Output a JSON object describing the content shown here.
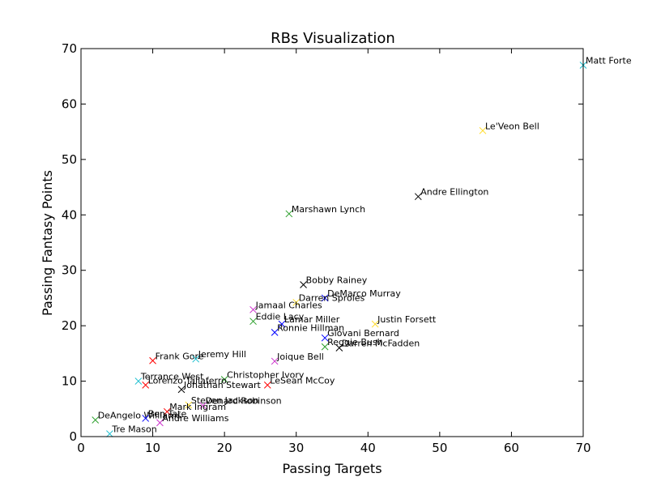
{
  "chart_data": {
    "type": "scatter",
    "title": "RBs Visualization",
    "xlabel": "Passing Targets",
    "ylabel": "Passing Fantasy Points",
    "xlim": [
      0,
      70
    ],
    "ylim": [
      0,
      70
    ],
    "xticks": [
      0,
      10,
      20,
      30,
      40,
      50,
      60,
      70
    ],
    "yticks": [
      0,
      10,
      20,
      30,
      40,
      50,
      60,
      70
    ],
    "grid": false,
    "marker": "x",
    "points": [
      {
        "name": "Matt Forte",
        "x": 70,
        "y": 67,
        "color": "#17becf"
      },
      {
        "name": "Le'Veon Bell",
        "x": 56,
        "y": 55.2,
        "color": "#ffdd33"
      },
      {
        "name": "Andre Ellington",
        "x": 47,
        "y": 43.3,
        "color": "#000000"
      },
      {
        "name": "Marshawn Lynch",
        "x": 29,
        "y": 40.2,
        "color": "#2ca02c"
      },
      {
        "name": "Bobby Rainey",
        "x": 31,
        "y": 27.4,
        "color": "#000000"
      },
      {
        "name": "DeMarco Murray",
        "x": 34,
        "y": 25,
        "color": "#0000ff"
      },
      {
        "name": "Darren Sproles",
        "x": 30,
        "y": 24.2,
        "color": "#ffdd33"
      },
      {
        "name": "Jamaal Charles",
        "x": 24,
        "y": 22.9,
        "color": "#cc33cc"
      },
      {
        "name": "Eddie Lacy",
        "x": 24,
        "y": 20.8,
        "color": "#2ca02c"
      },
      {
        "name": "Lamar Miller",
        "x": 28,
        "y": 20.3,
        "color": "#0000ff"
      },
      {
        "name": "Justin Forsett",
        "x": 41,
        "y": 20.3,
        "color": "#ffdd33"
      },
      {
        "name": "Ronnie Hillman",
        "x": 27,
        "y": 18.8,
        "color": "#0000ff"
      },
      {
        "name": "Giovani Bernard",
        "x": 34,
        "y": 17.8,
        "color": "#0000ff"
      },
      {
        "name": "Reggie Bush",
        "x": 34,
        "y": 16.2,
        "color": "#2ca02c"
      },
      {
        "name": "Darren McFadden",
        "x": 36,
        "y": 16,
        "color": "#000000"
      },
      {
        "name": "Frank Gore",
        "x": 10,
        "y": 13.7,
        "color": "#ff0000"
      },
      {
        "name": "Jeremy Hill",
        "x": 16,
        "y": 14,
        "color": "#17becf"
      },
      {
        "name": "Joique Bell",
        "x": 27,
        "y": 13.6,
        "color": "#cc33cc"
      },
      {
        "name": "Terrance West",
        "x": 8,
        "y": 10,
        "color": "#17becf"
      },
      {
        "name": "Christopher Ivory",
        "x": 20,
        "y": 10.3,
        "color": "#2ca02c"
      },
      {
        "name": "Lorenzo Taliaferro",
        "x": 9,
        "y": 9.3,
        "color": "#ff0000"
      },
      {
        "name": "LeSean McCoy",
        "x": 26,
        "y": 9.3,
        "color": "#ff0000"
      },
      {
        "name": "Jonathan Stewart",
        "x": 14,
        "y": 8.5,
        "color": "#000000"
      },
      {
        "name": "Steven Jackson",
        "x": 15,
        "y": 5.7,
        "color": "#ffdd33"
      },
      {
        "name": "Denard Robinson",
        "x": 17,
        "y": 5.6,
        "color": "#cc33cc"
      },
      {
        "name": "Mark Ingram",
        "x": 12,
        "y": 4.5,
        "color": "#ff0000"
      },
      {
        "name": "DeAngelo Williams",
        "x": 2,
        "y": 3,
        "color": "#2ca02c"
      },
      {
        "name": "Ben Tate",
        "x": 9,
        "y": 3.3,
        "color": "#0000ff"
      },
      {
        "name": "Andre Williams",
        "x": 11,
        "y": 2.5,
        "color": "#cc33cc"
      },
      {
        "name": "Tre Mason",
        "x": 4,
        "y": 0.5,
        "color": "#17becf"
      }
    ]
  }
}
